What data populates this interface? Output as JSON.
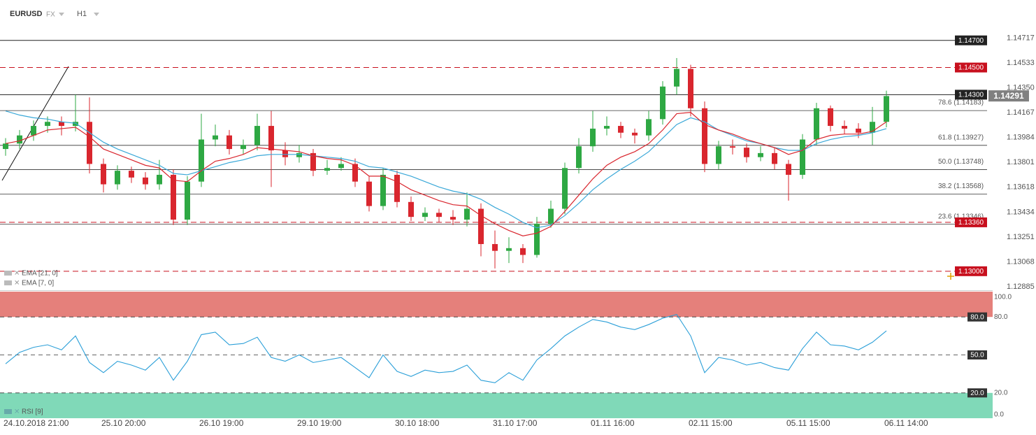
{
  "header": {
    "symbol": "EURUSD",
    "market": "FX",
    "timeframe": "H1"
  },
  "chart_data": [
    {
      "type": "candlestick",
      "categories": [
        "24.10.2018 21:00",
        null,
        null,
        null,
        null,
        null,
        null,
        "25.10 20:00",
        null,
        null,
        null,
        null,
        null,
        null,
        "26.10 19:00",
        null,
        null,
        null,
        null,
        null,
        null,
        "29.10 19:00",
        null,
        null,
        null,
        null,
        null,
        null,
        "30.10 18:00",
        null,
        null,
        null,
        null,
        null,
        null,
        "31.10 17:00",
        null,
        null,
        null,
        null,
        null,
        null,
        "01.11 16:00",
        null,
        null,
        null,
        null,
        null,
        null,
        "02.11 15:00",
        null,
        null,
        null,
        null,
        null,
        null,
        "05.11 15:00",
        null,
        null,
        null,
        null,
        null,
        null,
        "06.11 14:00"
      ],
      "open": [
        1.139,
        1.1394,
        1.14,
        1.1407,
        1.141,
        1.1407,
        1.141,
        1.1379,
        1.1364,
        1.1374,
        1.1369,
        1.1364,
        1.1371,
        1.1338,
        1.1366,
        1.1397,
        1.14,
        1.139,
        1.1393,
        1.1407,
        1.1389,
        1.1384,
        1.1387,
        1.1374,
        1.1376,
        1.1379,
        1.1366,
        1.1348,
        1.1371,
        1.1351,
        1.134,
        1.1343,
        1.134,
        1.1338,
        1.1346,
        1.132,
        1.1315,
        1.1317,
        1.1312,
        1.1335,
        1.1346,
        1.1376,
        1.1392,
        1.1405,
        1.1407,
        1.1402,
        1.14,
        1.1412,
        1.1436,
        1.1449,
        1.142,
        1.1379,
        1.1392,
        1.1391,
        1.1384,
        1.1387,
        1.1379,
        1.1371,
        1.1397,
        1.142,
        1.1407,
        1.1405,
        1.1402,
        1.141
      ],
      "high": [
        1.1398,
        1.1404,
        1.1411,
        1.1414,
        1.1414,
        1.143,
        1.1428,
        1.1383,
        1.1378,
        1.1377,
        1.1373,
        1.1382,
        1.1375,
        1.137,
        1.1416,
        1.1408,
        1.1404,
        1.1397,
        1.1416,
        1.1418,
        1.1395,
        1.1393,
        1.139,
        1.1382,
        1.1384,
        1.1383,
        1.137,
        1.1376,
        1.1374,
        1.1355,
        1.1347,
        1.1346,
        1.1345,
        1.1358,
        1.135,
        1.133,
        1.1325,
        1.132,
        1.134,
        1.1352,
        1.138,
        1.1398,
        1.1418,
        1.1414,
        1.141,
        1.1405,
        1.1418,
        1.144,
        1.1457,
        1.1452,
        1.1425,
        1.1396,
        1.1397,
        1.1394,
        1.1392,
        1.1391,
        1.1382,
        1.1401,
        1.1424,
        1.1422,
        1.1411,
        1.1409,
        1.1421,
        1.1433
      ],
      "low": [
        1.1385,
        1.139,
        1.1396,
        1.1402,
        1.14,
        1.1403,
        1.1372,
        1.1358,
        1.136,
        1.1365,
        1.136,
        1.136,
        1.1334,
        1.1334,
        1.1362,
        1.1392,
        1.1386,
        1.1386,
        1.1389,
        1.1362,
        1.1378,
        1.138,
        1.137,
        1.1371,
        1.1374,
        1.1362,
        1.1344,
        1.1345,
        1.1347,
        1.1337,
        1.1337,
        1.1336,
        1.1334,
        1.1333,
        1.1311,
        1.1302,
        1.1306,
        1.1306,
        1.131,
        1.1332,
        1.1342,
        1.1372,
        1.1388,
        1.14,
        1.1398,
        1.1394,
        1.1396,
        1.1408,
        1.143,
        1.1414,
        1.1373,
        1.1375,
        1.1386,
        1.138,
        1.1381,
        1.1375,
        1.1352,
        1.1368,
        1.1393,
        1.1403,
        1.1401,
        1.1398,
        1.1393,
        1.1406
      ],
      "close": [
        1.1394,
        1.14,
        1.1407,
        1.141,
        1.1407,
        1.141,
        1.1379,
        1.1364,
        1.1374,
        1.1369,
        1.1364,
        1.1371,
        1.1338,
        1.1366,
        1.1397,
        1.14,
        1.139,
        1.1393,
        1.1407,
        1.1389,
        1.1384,
        1.1387,
        1.1374,
        1.1376,
        1.1379,
        1.1366,
        1.1348,
        1.1371,
        1.1351,
        1.134,
        1.1343,
        1.134,
        1.1338,
        1.1346,
        1.132,
        1.1315,
        1.1317,
        1.1312,
        1.1335,
        1.1346,
        1.1376,
        1.1392,
        1.1405,
        1.1407,
        1.1402,
        1.14,
        1.1412,
        1.1436,
        1.1449,
        1.142,
        1.1379,
        1.1392,
        1.1391,
        1.1384,
        1.1387,
        1.1379,
        1.1371,
        1.1397,
        1.142,
        1.1407,
        1.1405,
        1.1402,
        1.141,
        1.1429
      ],
      "up_color": "#2ea843",
      "down_color": "#d9262e",
      "series": [
        {
          "name": "EMA [21, 0]",
          "color": "#3aa8d8",
          "values": [
            1.1418,
            1.1415,
            1.1413,
            1.1412,
            1.141,
            1.1409,
            1.1402,
            1.1395,
            1.139,
            1.1386,
            1.1382,
            1.1378,
            1.1372,
            1.1371,
            1.1374,
            1.1377,
            1.138,
            1.1382,
            1.1385,
            1.1386,
            1.1386,
            1.1386,
            1.1385,
            1.1384,
            1.1383,
            1.1381,
            1.1377,
            1.1376,
            1.1373,
            1.137,
            1.1366,
            1.1362,
            1.1359,
            1.1357,
            1.1353,
            1.1347,
            1.1342,
            1.1336,
            1.1332,
            1.1334,
            1.1341,
            1.135,
            1.136,
            1.1368,
            1.1375,
            1.1381,
            1.1388,
            1.1398,
            1.1408,
            1.1413,
            1.141,
            1.1404,
            1.14,
            1.1396,
            1.1394,
            1.1391,
            1.1389,
            1.1389,
            1.1394,
            1.1397,
            1.1399,
            1.14,
            1.1402,
            1.1405
          ]
        },
        {
          "name": "EMA [7, 0]",
          "color": "#d9262e",
          "values": [
            1.1394,
            1.1396,
            1.14,
            1.1404,
            1.1405,
            1.1406,
            1.1399,
            1.139,
            1.1386,
            1.1382,
            1.1378,
            1.1376,
            1.1367,
            1.1366,
            1.1374,
            1.1381,
            1.1383,
            1.1386,
            1.1391,
            1.139,
            1.1389,
            1.1388,
            1.1385,
            1.1383,
            1.1382,
            1.1378,
            1.137,
            1.137,
            1.1366,
            1.136,
            1.1356,
            1.1352,
            1.1349,
            1.1348,
            1.1341,
            1.1335,
            1.133,
            1.1326,
            1.1328,
            1.1333,
            1.1344,
            1.1356,
            1.1368,
            1.1378,
            1.1384,
            1.1388,
            1.1394,
            1.1404,
            1.1416,
            1.1417,
            1.1408,
            1.1404,
            1.1401,
            1.1397,
            1.1394,
            1.1391,
            1.1386,
            1.1389,
            1.1397,
            1.14,
            1.1401,
            1.1401,
            1.1403,
            1.141
          ]
        }
      ],
      "ylim": [
        1.1286,
        1.1492
      ],
      "yticks": [
        1.14717,
        1.14533,
        {
          "value": 1.1435,
          "label": "1.14350"
        },
        1.14167,
        1.13984,
        1.13801,
        1.13618,
        1.13434,
        1.13251,
        1.13068,
        1.12885
      ],
      "grid": false,
      "levels": [
        {
          "value": 1.147,
          "label": "1.14700",
          "color": "#222222",
          "style": "solid"
        },
        {
          "value": 1.145,
          "label": "1.14500",
          "color": "#c8101e",
          "style": "dashed"
        },
        {
          "value": 1.143,
          "label": "1.14300",
          "color": "#222222",
          "style": "solid"
        },
        {
          "value": 1.1336,
          "label": "1.13360",
          "color": "#c8101e",
          "style": "dashed"
        },
        {
          "value": 1.13,
          "label": "1.13000",
          "color": "#c8101e",
          "style": "dashed"
        }
      ],
      "fib_levels": [
        {
          "value": 1.14183,
          "label": "78.6 (1.14183)"
        },
        {
          "value": 1.13927,
          "label": "61.8 (1.13927)"
        },
        {
          "value": 1.13748,
          "label": "50.0 (1.13748)"
        },
        {
          "value": 1.13568,
          "label": "38.2 (1.13568)"
        },
        {
          "value": 1.13346,
          "label": "23.6 (1.13346)"
        }
      ],
      "last_price": 1.14291,
      "last_price_color": "#808080"
    },
    {
      "type": "line",
      "series": [
        {
          "name": "RSI [9]",
          "color": "#2b9fd8",
          "values": [
            43,
            52,
            56,
            58,
            54,
            65,
            44,
            36,
            45,
            42,
            38,
            48,
            30,
            45,
            66,
            68,
            58,
            59,
            64,
            48,
            45,
            50,
            44,
            46,
            48,
            40,
            32,
            50,
            37,
            33,
            38,
            36,
            37,
            42,
            30,
            28,
            36,
            30,
            46,
            55,
            65,
            72,
            78,
            76,
            72,
            70,
            74,
            79,
            82,
            65,
            36,
            48,
            46,
            42,
            44,
            40,
            38,
            55,
            68,
            58,
            57,
            54,
            60,
            69
          ]
        }
      ],
      "ylim": [
        0,
        100
      ],
      "yticks": [
        {
          "value": 100,
          "label": "100.0"
        },
        {
          "value": 80,
          "label": "80.0"
        },
        {
          "value": 20,
          "label": "20.0"
        },
        {
          "value": 0,
          "label": "0.0"
        }
      ],
      "levels": [
        {
          "value": 80,
          "label": "80.0"
        },
        {
          "value": 50,
          "label": "50.0"
        },
        {
          "value": 20,
          "label": "20.0"
        }
      ],
      "bands": [
        {
          "from": 80,
          "to": 100,
          "color": "#e5807b"
        },
        {
          "from": 0,
          "to": 20,
          "color": "#80d9b8"
        }
      ]
    }
  ]
}
